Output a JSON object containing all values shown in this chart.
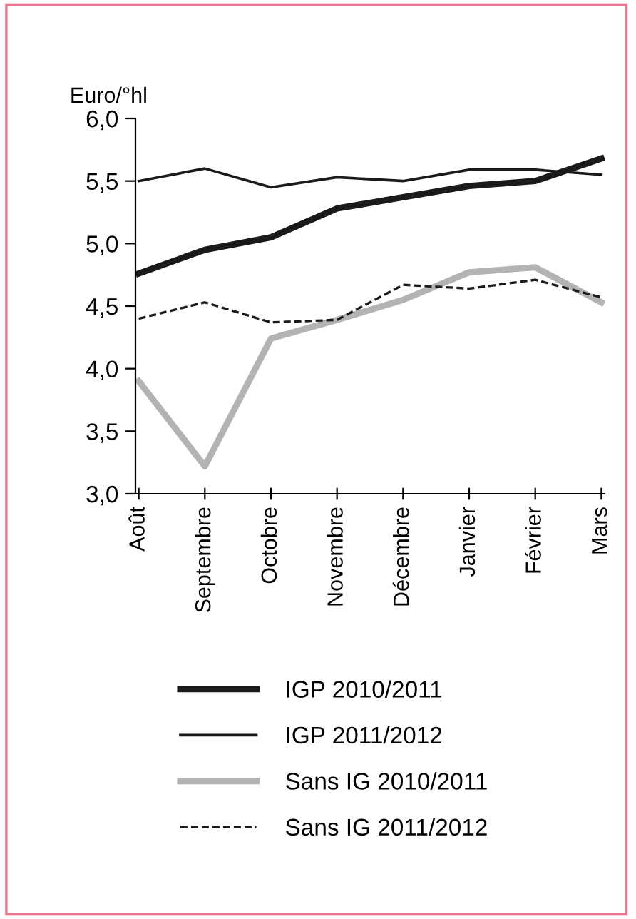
{
  "chart_data": {
    "type": "line",
    "ylabel": "Euro/°hl",
    "categories": [
      "Août",
      "Septembre",
      "Octobre",
      "Novembre",
      "Décembre",
      "Janvier",
      "Février",
      "Mars"
    ],
    "series": [
      {
        "name": "IGP 2010/2011",
        "color": "#1a1a1a",
        "line_style": "solid",
        "values": [
          4.76,
          4.95,
          5.05,
          5.28,
          5.37,
          5.46,
          5.5,
          5.68
        ]
      },
      {
        "name": "IGP 2011/2012",
        "color": "#1a1a1a",
        "line_style": "solid",
        "values": [
          5.5,
          5.6,
          5.45,
          5.53,
          5.5,
          5.59,
          5.59,
          5.55
        ]
      },
      {
        "name": "Sans IG 2010/2011",
        "color": "#b3b3b3",
        "line_style": "solid",
        "values": [
          3.9,
          3.22,
          4.24,
          4.39,
          4.55,
          4.77,
          4.81,
          4.53
        ]
      },
      {
        "name": "Sans IG 2011/2012",
        "color": "#1a1a1a",
        "line_style": "dashed",
        "values": [
          4.4,
          4.53,
          4.37,
          4.39,
          4.67,
          4.64,
          4.71,
          4.57
        ]
      }
    ],
    "ylim": [
      3.0,
      6.0
    ],
    "yticks": [
      {
        "value": 3.0,
        "label": "3,0"
      },
      {
        "value": 3.5,
        "label": "3,5"
      },
      {
        "value": 4.0,
        "label": "4,0"
      },
      {
        "value": 4.5,
        "label": "4,5"
      },
      {
        "value": 5.0,
        "label": "5,0"
      },
      {
        "value": 5.5,
        "label": "5,5"
      },
      {
        "value": 6.0,
        "label": "6,0"
      }
    ],
    "grid": false,
    "legend": "bottom",
    "marker": "none"
  }
}
